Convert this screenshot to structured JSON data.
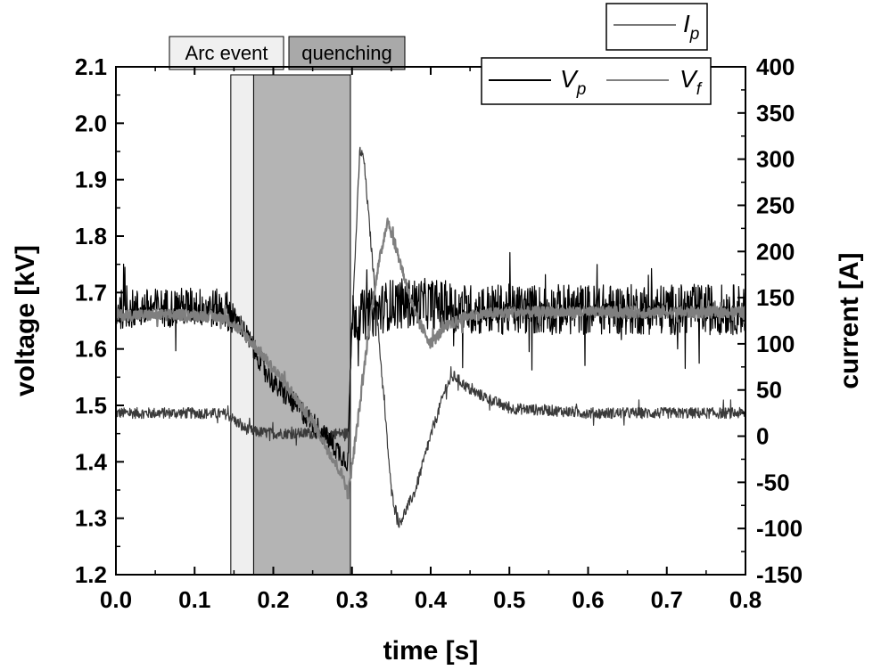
{
  "chart_data": {
    "type": "line",
    "xlabel": "time [s]",
    "ylabel_left": "voltage [kV]",
    "ylabel_right": "current [A]",
    "xlim": [
      0.0,
      0.8
    ],
    "ylim_left": [
      1.2,
      2.1
    ],
    "ylim_right": [
      -150,
      400
    ],
    "x_ticks": [
      "0.0",
      "0.1",
      "0.2",
      "0.3",
      "0.4",
      "0.5",
      "0.6",
      "0.7",
      "0.8"
    ],
    "y_left_ticks": [
      "1.2",
      "1.3",
      "1.4",
      "1.5",
      "1.6",
      "1.7",
      "1.8",
      "1.9",
      "2.0",
      "2.1"
    ],
    "y_right_ticks": [
      "-150",
      "-100",
      "-50",
      "0",
      "50",
      "100",
      "150",
      "200",
      "250",
      "300",
      "350",
      "400"
    ],
    "grid": false,
    "annotations": [
      {
        "label": "Arc event",
        "x_start": 0.146,
        "x_end": 0.175,
        "color": "#efefef"
      },
      {
        "label": "quenching",
        "x_start": 0.175,
        "x_end": 0.298,
        "color": "#b4b4b4"
      }
    ],
    "legend": {
      "entries": [
        {
          "main": "I",
          "sub": "p",
          "color": "#7a7a7a"
        },
        {
          "main": "V",
          "sub": "p",
          "color": "#000000"
        },
        {
          "main": "V",
          "sub": "f",
          "color": "#808080"
        }
      ]
    },
    "series": [
      {
        "name": "V_p",
        "axis": "left",
        "color": "#000000",
        "noise": 0.035,
        "x": [
          0.0,
          0.1,
          0.14,
          0.16,
          0.175,
          0.2,
          0.25,
          0.295,
          0.3,
          0.32,
          0.35,
          0.4,
          0.45,
          0.5,
          0.6,
          0.7,
          0.8
        ],
        "y": [
          1.67,
          1.675,
          1.67,
          1.64,
          1.6,
          1.54,
          1.47,
          1.4,
          1.66,
          1.66,
          1.68,
          1.68,
          1.67,
          1.67,
          1.67,
          1.67,
          1.67
        ]
      },
      {
        "name": "V_f",
        "axis": "left",
        "color": "#7f7f7f",
        "noise": 0.01,
        "x": [
          0.0,
          0.1,
          0.14,
          0.16,
          0.18,
          0.2,
          0.22,
          0.25,
          0.27,
          0.29,
          0.295,
          0.31,
          0.32,
          0.33,
          0.345,
          0.36,
          0.38,
          0.4,
          0.42,
          0.45,
          0.5,
          0.6,
          0.7,
          0.8
        ],
        "y": [
          1.66,
          1.66,
          1.655,
          1.63,
          1.6,
          1.565,
          1.53,
          1.47,
          1.42,
          1.37,
          1.34,
          1.5,
          1.62,
          1.72,
          1.83,
          1.76,
          1.66,
          1.61,
          1.64,
          1.66,
          1.665,
          1.665,
          1.665,
          1.665
        ]
      },
      {
        "name": "I_p",
        "axis": "right",
        "color": "#3a3a3a",
        "noise": 6,
        "x": [
          0.0,
          0.1,
          0.14,
          0.15,
          0.16,
          0.175,
          0.2,
          0.25,
          0.295,
          0.3,
          0.31,
          0.315,
          0.33,
          0.35,
          0.36,
          0.38,
          0.4,
          0.42,
          0.43,
          0.45,
          0.5,
          0.55,
          0.6,
          0.7,
          0.8
        ],
        "y": [
          25,
          25,
          24,
          18,
          10,
          5,
          3,
          3,
          3,
          120,
          310,
          300,
          150,
          -60,
          -95,
          -60,
          0,
          55,
          65,
          50,
          30,
          28,
          25,
          25,
          25
        ]
      }
    ]
  }
}
